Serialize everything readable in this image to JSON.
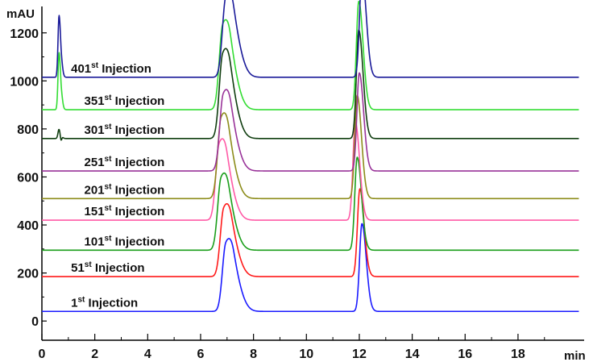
{
  "chart_data": {
    "type": "line",
    "title": "",
    "xlabel": "min",
    "ylabel": "mAU",
    "xlim": [
      0,
      20.5
    ],
    "ylim": [
      -80,
      1310
    ],
    "x_ticks": [
      0,
      2,
      4,
      6,
      8,
      10,
      12,
      14,
      16,
      18
    ],
    "y_ticks": [
      0,
      200,
      400,
      600,
      800,
      1000,
      1200
    ],
    "grid": false,
    "peaks": [
      {
        "rt": 0.65,
        "height": 220,
        "width": 0.05
      },
      {
        "rt": 6.95,
        "height": 310,
        "width": 0.13
      },
      {
        "rt": 7.25,
        "height": 160,
        "width": 0.16
      },
      {
        "rt": 12.1,
        "height": 430,
        "width": 0.09
      }
    ],
    "series": [
      {
        "name": "1st Injection",
        "ordinal": "1",
        "suffix": "st",
        "label_text": "Injection",
        "color": "#1a1aff",
        "baseline": 40,
        "shift": 0.0,
        "scale": 0.85,
        "pre_peak": 0
      },
      {
        "name": "51st Injection",
        "ordinal": "51",
        "suffix": "st",
        "label_text": "Injection",
        "color": "#ff1a1a",
        "baseline": 185,
        "shift": -0.08,
        "scale": 0.85,
        "pre_peak": 0
      },
      {
        "name": "101st Injection",
        "ordinal": "101",
        "suffix": "st",
        "label_text": "Injection",
        "color": "#1a9e1a",
        "baseline": 295,
        "shift": -0.18,
        "scale": 0.9,
        "pre_peak": 0
      },
      {
        "name": "151st Injection",
        "ordinal": "151",
        "suffix": "st",
        "label_text": "Injection",
        "color": "#ff5aa6",
        "baseline": 420,
        "shift": -0.25,
        "scale": 0.95,
        "pre_peak": 0
      },
      {
        "name": "201st Injection",
        "ordinal": "201",
        "suffix": "st",
        "label_text": "Injection",
        "color": "#8c8c1a",
        "baseline": 510,
        "shift": -0.18,
        "scale": 1.0,
        "pre_peak": 0
      },
      {
        "name": "251st Injection",
        "ordinal": "251",
        "suffix": "st",
        "label_text": "Injection",
        "color": "#993399",
        "baseline": 625,
        "shift": -0.1,
        "scale": 0.95,
        "pre_peak": 0
      },
      {
        "name": "301st Injection",
        "ordinal": "301",
        "suffix": "st",
        "label_text": "Injection",
        "color": "#0f3d0f",
        "baseline": 760,
        "shift": -0.12,
        "scale": 1.05,
        "pre_peak": 40
      },
      {
        "name": "351st Injection",
        "ordinal": "351",
        "suffix": "st",
        "label_text": "Injection",
        "color": "#33dd33",
        "baseline": 880,
        "shift": -0.12,
        "scale": 1.05,
        "pre_peak": 240
      },
      {
        "name": "401st Injection",
        "ordinal": "401",
        "suffix": "st",
        "label_text": "Injection",
        "color": "#1a1a99",
        "baseline": 1015,
        "shift": 0.0,
        "scale": 1.0,
        "pre_peak": 260
      }
    ],
    "label_positions_x": [
      1.1,
      1.1,
      1.6,
      1.6,
      1.6,
      1.6,
      1.6,
      1.6,
      1.1
    ]
  }
}
